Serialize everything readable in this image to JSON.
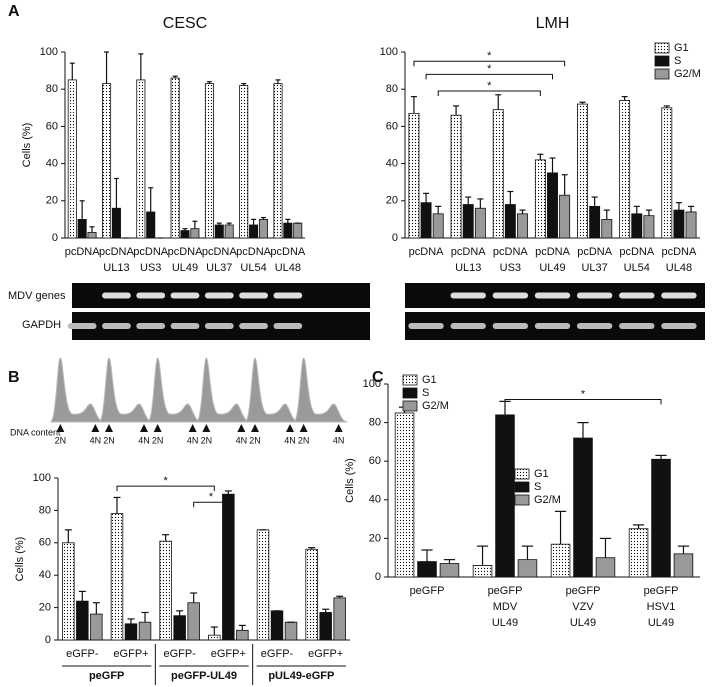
{
  "panel_labels": [
    "A",
    "B",
    "C"
  ],
  "gel": {
    "rows": [
      "MDV genes",
      "GAPDH"
    ]
  },
  "flow": {
    "xlabel": "DNA content",
    "peaks": [
      "2N",
      "4N"
    ]
  },
  "chart_data": [
    {
      "type": "bar",
      "title": "CESC",
      "ylabel": "Cells (%)",
      "ylim": [
        0,
        100
      ],
      "yticks": [
        0,
        20,
        40,
        60,
        80,
        100
      ],
      "legend": "none",
      "categories": [
        [
          "pcDNA"
        ],
        [
          "pcDNA",
          "UL13"
        ],
        [
          "pcDNA",
          "US3"
        ],
        [
          "pcDNA",
          "UL49"
        ],
        [
          "pcDNA",
          "UL37"
        ],
        [
          "pcDNA",
          "UL54"
        ],
        [
          "pcDNA",
          "UL48"
        ]
      ],
      "series": [
        {
          "name": "G1",
          "color": "#ffffff",
          "pattern": "dotted",
          "values": [
            85,
            83,
            85,
            86,
            83,
            82,
            83
          ],
          "errors": [
            9,
            17,
            14,
            1,
            1,
            1,
            2
          ]
        },
        {
          "name": "S",
          "color": "#111111",
          "values": [
            10,
            16,
            14,
            4,
            7,
            7,
            8
          ],
          "errors": [
            10,
            16,
            13,
            1,
            1,
            3,
            2
          ]
        },
        {
          "name": "G2/M",
          "color": "#999999",
          "values": [
            3,
            0,
            0,
            5,
            7,
            10,
            8
          ],
          "errors": [
            3,
            0,
            0,
            4,
            1,
            1,
            0
          ]
        }
      ]
    },
    {
      "type": "bar",
      "title": "LMH",
      "ylabel": "",
      "ylim": [
        0,
        100
      ],
      "yticks": [
        0,
        20,
        40,
        60,
        80,
        100
      ],
      "legend": "upper right",
      "annotations": [
        "*",
        "*",
        "*"
      ],
      "categories": [
        [
          "pcDNA"
        ],
        [
          "pcDNA",
          "UL13"
        ],
        [
          "pcDNA",
          "US3"
        ],
        [
          "pcDNA",
          "UL49"
        ],
        [
          "pcDNA",
          "UL37"
        ],
        [
          "pcDNA",
          "UL54"
        ],
        [
          "pcDNA",
          "UL48"
        ]
      ],
      "series": [
        {
          "name": "G1",
          "color": "#ffffff",
          "pattern": "dotted",
          "values": [
            67,
            66,
            69,
            42,
            72,
            74,
            70
          ],
          "errors": [
            9,
            5,
            8,
            3,
            1,
            2,
            1
          ]
        },
        {
          "name": "S",
          "color": "#111111",
          "values": [
            19,
            18,
            18,
            35,
            17,
            13,
            15
          ],
          "errors": [
            5,
            4,
            7,
            8,
            5,
            4,
            4
          ]
        },
        {
          "name": "G2/M",
          "color": "#999999",
          "values": [
            13,
            16,
            13,
            23,
            10,
            12,
            14
          ],
          "errors": [
            4,
            5,
            2,
            11,
            5,
            3,
            3
          ]
        }
      ]
    },
    {
      "type": "bar",
      "title": "",
      "ylabel": "Cells (%)",
      "ylim": [
        0,
        100
      ],
      "yticks": [
        0,
        20,
        40,
        60,
        80,
        100
      ],
      "legend": "right",
      "annotations": [
        "*",
        "*"
      ],
      "groups": [
        "peGFP",
        "peGFP-UL49",
        "pUL49-eGFP"
      ],
      "categories": [
        [
          "eGFP-"
        ],
        [
          "eGFP+"
        ],
        [
          "eGFP-"
        ],
        [
          "eGFP+"
        ],
        [
          "eGFP-"
        ],
        [
          "eGFP+"
        ]
      ],
      "series": [
        {
          "name": "G1",
          "color": "#ffffff",
          "pattern": "dotted",
          "values": [
            60,
            78,
            61,
            3,
            68,
            56
          ],
          "errors": [
            8,
            10,
            4,
            5,
            0,
            1
          ]
        },
        {
          "name": "S",
          "color": "#111111",
          "values": [
            24,
            10,
            15,
            90,
            18,
            17
          ],
          "errors": [
            6,
            3,
            3,
            2,
            0,
            2
          ]
        },
        {
          "name": "G2/M",
          "color": "#999999",
          "values": [
            16,
            11,
            23,
            6,
            11,
            26
          ],
          "errors": [
            7,
            6,
            6,
            3,
            0,
            1
          ]
        }
      ]
    },
    {
      "type": "bar",
      "title": "",
      "ylabel": "Cells (%)",
      "ylim": [
        0,
        100
      ],
      "yticks": [
        0,
        20,
        40,
        60,
        80,
        100
      ],
      "legend": "upper left",
      "annotations": [
        "*"
      ],
      "categories": [
        [
          "peGFP"
        ],
        [
          "peGFP",
          "MDV",
          "UL49"
        ],
        [
          "peGFP",
          "VZV",
          "UL49"
        ],
        [
          "peGFP",
          "HSV1",
          "UL49"
        ]
      ],
      "series": [
        {
          "name": "G1",
          "color": "#ffffff",
          "pattern": "dotted",
          "values": [
            85,
            6,
            17,
            25
          ],
          "errors": [
            3,
            10,
            17,
            2
          ]
        },
        {
          "name": "S",
          "color": "#111111",
          "values": [
            8,
            84,
            72,
            61
          ],
          "errors": [
            6,
            7,
            8,
            2
          ]
        },
        {
          "name": "G2/M",
          "color": "#999999",
          "values": [
            7,
            9,
            10,
            12
          ],
          "errors": [
            2,
            7,
            10,
            4
          ]
        }
      ]
    }
  ]
}
